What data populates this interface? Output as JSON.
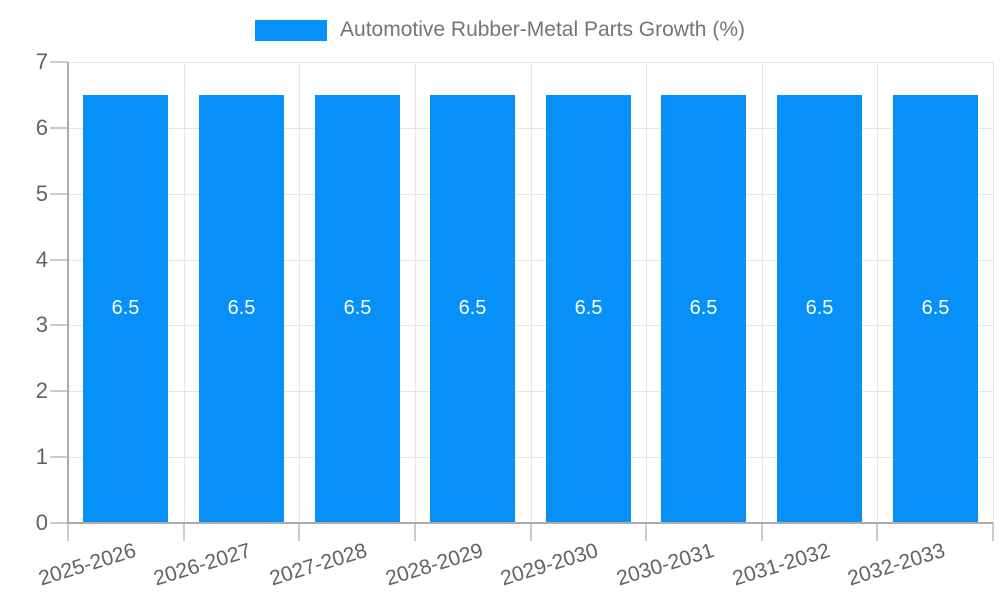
{
  "legend": {
    "label": "Automotive Rubber-Metal Parts Growth (%)"
  },
  "colors": {
    "bar": "#0690f8",
    "bar_label": "#ffffff",
    "legend_text": "#757575",
    "axis_text": "#636363",
    "grid": "#e6e6e6",
    "axis_line": "#ababab",
    "tick": "#cccccc",
    "background": "#ffffff"
  },
  "chart_data": {
    "type": "bar",
    "title": "",
    "xlabel": "",
    "ylabel": "",
    "categories": [
      "2025-2026",
      "2026-2027",
      "2027-2028",
      "2028-2029",
      "2029-2030",
      "2030-2031",
      "2031-2032",
      "2032-2033"
    ],
    "series": [
      {
        "name": "Automotive Rubber-Metal Parts Growth (%)",
        "values": [
          6.5,
          6.5,
          6.5,
          6.5,
          6.5,
          6.5,
          6.5,
          6.5
        ],
        "data_labels": [
          "6.5",
          "6.5",
          "6.5",
          "6.5",
          "6.5",
          "6.5",
          "6.5",
          "6.5"
        ]
      }
    ],
    "ylim": [
      0,
      7
    ],
    "y_ticks": [
      0,
      1,
      2,
      3,
      4,
      5,
      6,
      7
    ],
    "grid": true,
    "legend_position": "top",
    "x_label_rotation_deg": -17
  }
}
